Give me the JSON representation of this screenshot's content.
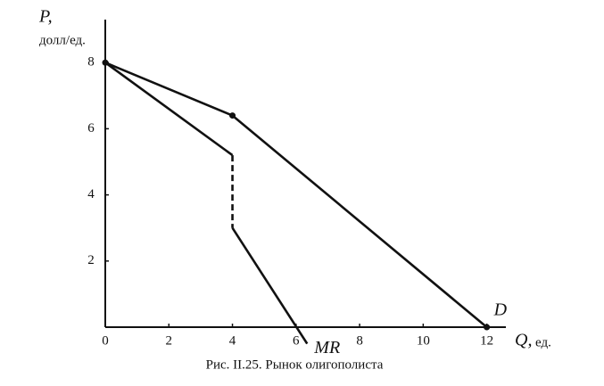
{
  "chart_data": {
    "type": "line",
    "caption": "Рис. II.25. Рынок олигополиста",
    "y_label": "P,",
    "y_unit": "долл/ед.",
    "x_label": "Q,",
    "x_unit": "ед.",
    "origin_label": "0",
    "xlim": [
      0,
      12.6
    ],
    "ylim": [
      0,
      9.3
    ],
    "xticks": [
      0,
      2,
      4,
      6,
      8,
      10,
      12
    ],
    "yticks": [
      2,
      4,
      6,
      8
    ],
    "color": "#111111",
    "series": [
      {
        "name": "D",
        "x": [
          0,
          4,
          12
        ],
        "values": [
          8,
          6.4,
          0
        ],
        "markers": true
      },
      {
        "name": "MR",
        "x": [
          0,
          4,
          4,
          4,
          6.35
        ],
        "values": [
          8,
          5.2,
          null,
          3.0,
          -0.5
        ]
      },
      {
        "x": [
          4,
          4
        ],
        "values": [
          5.2,
          3.0
        ],
        "dashed": true
      }
    ]
  }
}
